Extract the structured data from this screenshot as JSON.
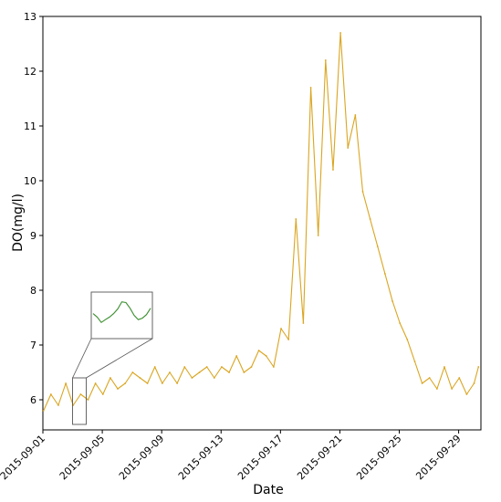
{
  "chart_data": {
    "type": "line",
    "xlabel": "Date",
    "ylabel": "DO(mg/l)",
    "ylim": [
      5.45,
      13.0
    ],
    "xlim": [
      "2015-09-01T00:00",
      "2015-09-30T12:00"
    ],
    "grid": false,
    "y_ticks": [
      6,
      7,
      8,
      9,
      10,
      11,
      12,
      13
    ],
    "x_ticks": [
      "2015-09-01",
      "2015-09-05",
      "2015-09-09",
      "2015-09-13",
      "2015-09-17",
      "2015-09-21",
      "2015-09-25",
      "2015-09-29"
    ],
    "series": [
      {
        "color": "#DAA520",
        "x": [
          "2015-09-01T01:00",
          "2015-09-01T13:00",
          "2015-09-02T01:00",
          "2015-09-02T13:00",
          "2015-09-03T01:00",
          "2015-09-03T13:00",
          "2015-09-04T01:00",
          "2015-09-04T13:00",
          "2015-09-05T01:00",
          "2015-09-05T13:00",
          "2015-09-06T01:00",
          "2015-09-06T13:00",
          "2015-09-07T01:00",
          "2015-09-07T13:00",
          "2015-09-08T01:00",
          "2015-09-08T13:00",
          "2015-09-09T01:00",
          "2015-09-09T13:00",
          "2015-09-10T01:00",
          "2015-09-10T13:00",
          "2015-09-11T01:00",
          "2015-09-11T13:00",
          "2015-09-12T01:00",
          "2015-09-12T13:00",
          "2015-09-13T01:00",
          "2015-09-13T13:00",
          "2015-09-14T01:00",
          "2015-09-14T13:00",
          "2015-09-15T01:00",
          "2015-09-15T13:00",
          "2015-09-16T01:00",
          "2015-09-16T13:00",
          "2015-09-17T01:00",
          "2015-09-17T13:00",
          "2015-09-18T01:00",
          "2015-09-18T13:00",
          "2015-09-19T01:00",
          "2015-09-19T13:00",
          "2015-09-20T01:00",
          "2015-09-20T13:00",
          "2015-09-21T01:00",
          "2015-09-21T13:00",
          "2015-09-22T01:00",
          "2015-09-22T13:00",
          "2015-09-23T01:00",
          "2015-09-23T13:00",
          "2015-09-24T01:00",
          "2015-09-24T13:00",
          "2015-09-25T01:00",
          "2015-09-25T13:00",
          "2015-09-26T01:00",
          "2015-09-26T13:00",
          "2015-09-27T01:00",
          "2015-09-27T13:00",
          "2015-09-28T01:00",
          "2015-09-28T13:00",
          "2015-09-29T01:00",
          "2015-09-29T13:00",
          "2015-09-30T01:00",
          "2015-09-30T08:00"
        ],
        "y": [
          5.8,
          6.1,
          5.9,
          6.3,
          5.9,
          6.1,
          6.0,
          6.3,
          6.1,
          6.4,
          6.2,
          6.3,
          6.5,
          6.4,
          6.3,
          6.6,
          6.3,
          6.5,
          6.3,
          6.6,
          6.4,
          6.5,
          6.6,
          6.4,
          6.6,
          6.5,
          6.8,
          6.5,
          6.6,
          6.9,
          6.8,
          6.6,
          7.3,
          7.1,
          9.3,
          7.4,
          11.7,
          9.0,
          12.2,
          10.2,
          12.7,
          10.6,
          11.2,
          9.8,
          9.3,
          8.8,
          8.3,
          7.8,
          7.4,
          7.1,
          6.7,
          6.3,
          6.4,
          6.2,
          6.6,
          6.2,
          6.4,
          6.1,
          6.3,
          6.6
        ]
      }
    ],
    "inset": {
      "zoom_range": [
        "2015-09-03T00:00",
        "2015-09-03T22:00"
      ],
      "color": "#3a8f2e"
    }
  }
}
